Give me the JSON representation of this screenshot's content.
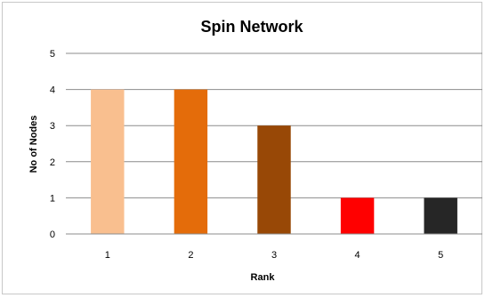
{
  "chart_data": {
    "type": "bar",
    "title": "Spin Network",
    "xlabel": "Rank",
    "ylabel": "No of Nodes",
    "categories": [
      "1",
      "2",
      "3",
      "4",
      "5"
    ],
    "values": [
      4,
      4,
      3,
      1,
      1
    ],
    "colors": [
      "#F9BF8F",
      "#E46C0A",
      "#984806",
      "#FF0000",
      "#262626"
    ],
    "ylim": [
      0,
      5
    ],
    "yticks": [
      "0",
      "1",
      "2",
      "3",
      "4",
      "5"
    ],
    "grid": true,
    "legend": "none"
  }
}
